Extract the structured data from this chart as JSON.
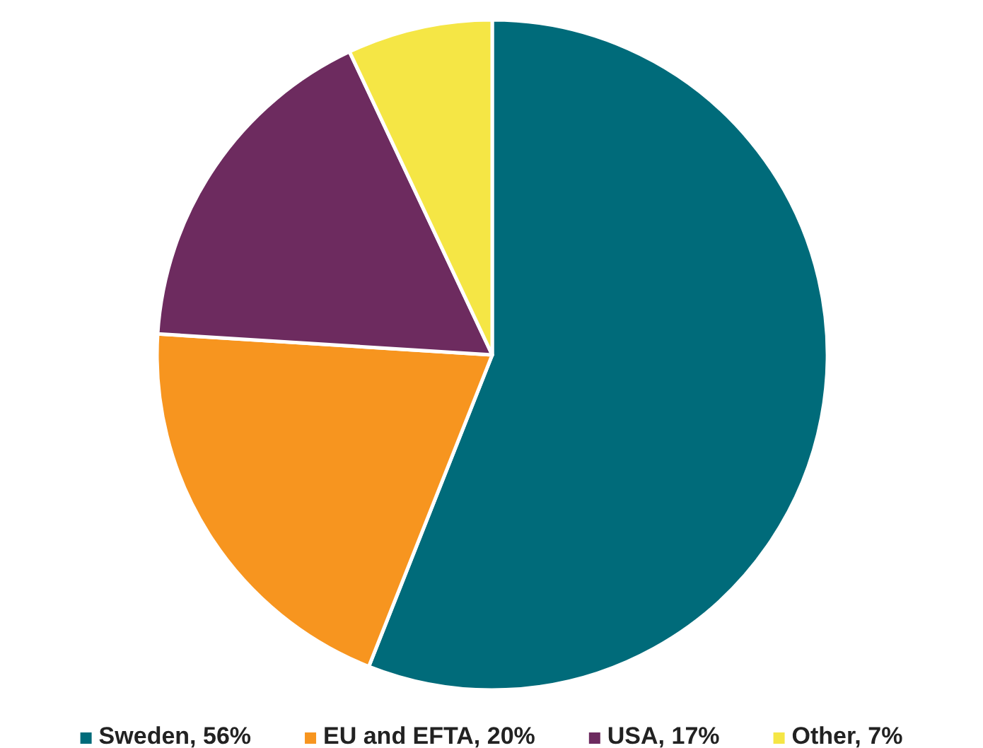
{
  "chart_data": {
    "type": "pie",
    "categories": [
      "Sweden, 56%",
      "EU and EFTA, 20%",
      "USA, 17%",
      "Other, 7%"
    ],
    "values": [
      56,
      20,
      17,
      7
    ],
    "colors": [
      "#006b7a",
      "#f7951f",
      "#6d2b5f",
      "#f5e645"
    ],
    "legend": "bottom"
  }
}
